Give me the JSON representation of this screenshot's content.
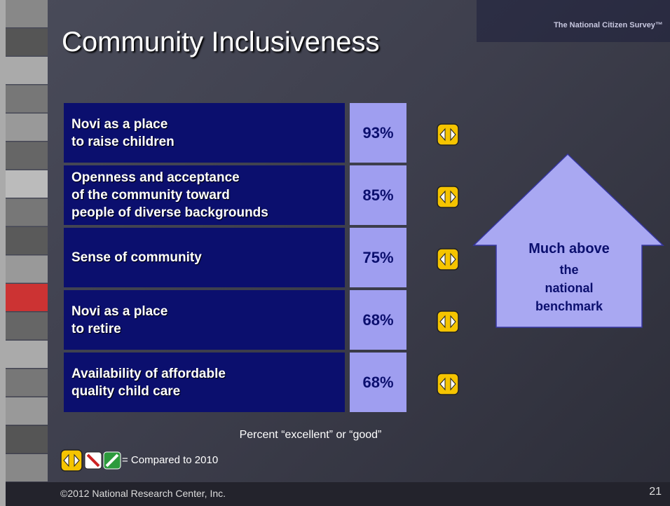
{
  "header": {
    "title": "Community Inclusiveness",
    "logo": "The National Citizen Survey™"
  },
  "table": {
    "rows": [
      {
        "label": "Novi as a place\nto raise children",
        "value": "93%"
      },
      {
        "label": "Openness and acceptance\nof the community toward\npeople of diverse backgrounds",
        "value": "85%"
      },
      {
        "label": "Sense of community",
        "value": "75%"
      },
      {
        "label": "Novi as a place\nto retire",
        "value": "68%"
      },
      {
        "label": "Availability of affordable\nquality child care",
        "value": "68%"
      }
    ],
    "caption": "Percent “excellent” or “good”"
  },
  "benchmark": {
    "headline": "Much above",
    "detail": "the\nnational\nbenchmark"
  },
  "legend": {
    "text": "= Compared to 2010"
  },
  "footer": {
    "copyright": "©2012 National Research Center, Inc.",
    "page": "21"
  }
}
